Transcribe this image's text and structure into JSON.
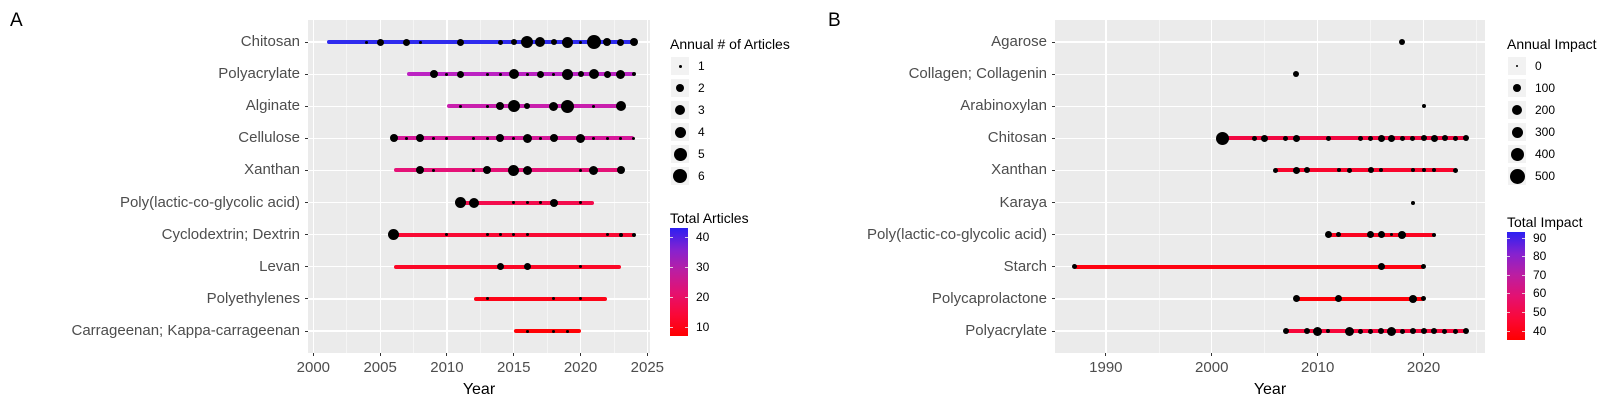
{
  "figure": {
    "background": "#FFFFFF",
    "panel_bg": "#EBEBEB",
    "grid_color": "#FFFFFF",
    "axis_text_color": "#4D4D4D",
    "dot_color": "#000000"
  },
  "chart_data": [
    {
      "type": "line",
      "panel_label": "A",
      "xlabel": "Year",
      "x_range": [
        1999.6,
        2025.2
      ],
      "x_ticks": [
        2000,
        2005,
        2010,
        2015,
        2020,
        2025
      ],
      "x_minor_ticks": [
        2002.5,
        2007.5,
        2012.5,
        2017.5,
        2022.5
      ],
      "size_legend": {
        "title": "Annual # of Articles",
        "entries": [
          {
            "label": "1",
            "d": 3
          },
          {
            "label": "2",
            "d": 8
          },
          {
            "label": "3",
            "d": 10
          },
          {
            "label": "4",
            "d": 11
          },
          {
            "label": "5",
            "d": 13
          },
          {
            "label": "6",
            "d": 14
          }
        ]
      },
      "color_legend": {
        "title": "Total Articles",
        "range": [
          7,
          43
        ],
        "ticks": [
          40,
          30,
          20,
          10
        ],
        "stops": [
          "#2B20F2",
          "#8522D0",
          "#BC1EA1",
          "#E41170",
          "#FA0838",
          "#FF0000"
        ]
      },
      "rows": [
        {
          "label": "Chitosan",
          "line": [
            2001,
            2024
          ],
          "color": "#2F2BEE",
          "dots": [
            [
              2004,
              3
            ],
            [
              2005,
              7
            ],
            [
              2007,
              7
            ],
            [
              2008,
              3
            ],
            [
              2011,
              7
            ],
            [
              2014,
              5
            ],
            [
              2015,
              6
            ],
            [
              2016,
              12
            ],
            [
              2017,
              10
            ],
            [
              2018,
              6
            ],
            [
              2019,
              11
            ],
            [
              2020,
              3
            ],
            [
              2021,
              14
            ],
            [
              2022,
              8
            ],
            [
              2023,
              7
            ],
            [
              2024,
              8
            ]
          ]
        },
        {
          "label": "Polyacrylate",
          "line": [
            2007,
            2024
          ],
          "color": "#BC22C3",
          "dots": [
            [
              2009,
              8
            ],
            [
              2010,
              3
            ],
            [
              2011,
              7
            ],
            [
              2013,
              3
            ],
            [
              2014,
              3
            ],
            [
              2015,
              10
            ],
            [
              2016,
              3
            ],
            [
              2017,
              7
            ],
            [
              2018,
              3
            ],
            [
              2019,
              11
            ],
            [
              2020,
              6
            ],
            [
              2021,
              10
            ],
            [
              2022,
              7
            ],
            [
              2023,
              9
            ],
            [
              2024,
              4
            ]
          ]
        },
        {
          "label": "Alginate",
          "line": [
            2010,
            2023
          ],
          "color": "#C91FAD",
          "dots": [
            [
              2011,
              3
            ],
            [
              2013,
              3
            ],
            [
              2014,
              8
            ],
            [
              2015,
              12
            ],
            [
              2016,
              6
            ],
            [
              2018,
              9
            ],
            [
              2019,
              13
            ],
            [
              2021,
              3
            ],
            [
              2023,
              10
            ]
          ]
        },
        {
          "label": "Cellulose",
          "line": [
            2006,
            2024
          ],
          "color": "#D7199A",
          "dots": [
            [
              2006,
              8
            ],
            [
              2007,
              3
            ],
            [
              2008,
              8
            ],
            [
              2009,
              3
            ],
            [
              2010,
              3
            ],
            [
              2012,
              3
            ],
            [
              2013,
              3
            ],
            [
              2014,
              8
            ],
            [
              2015,
              3
            ],
            [
              2016,
              9
            ],
            [
              2017,
              3
            ],
            [
              2018,
              8
            ],
            [
              2020,
              9
            ],
            [
              2021,
              3
            ],
            [
              2022,
              3
            ],
            [
              2023,
              3
            ],
            [
              2024,
              3
            ]
          ]
        },
        {
          "label": "Xanthan",
          "line": [
            2006,
            2023
          ],
          "color": "#E51277",
          "dots": [
            [
              2008,
              8
            ],
            [
              2009,
              3
            ],
            [
              2012,
              3
            ],
            [
              2013,
              8
            ],
            [
              2015,
              11
            ],
            [
              2016,
              9
            ],
            [
              2020,
              3
            ],
            [
              2021,
              9
            ],
            [
              2023,
              8
            ]
          ]
        },
        {
          "label": "Poly(lactic-co-glycolic acid)",
          "line": [
            2011,
            2021
          ],
          "color": "#F30C4C",
          "dots": [
            [
              2011,
              11
            ],
            [
              2012,
              10
            ],
            [
              2015,
              3
            ],
            [
              2016,
              3
            ],
            [
              2017,
              3
            ],
            [
              2018,
              8
            ],
            [
              2020,
              3
            ]
          ]
        },
        {
          "label": "Cyclodextrin; Dextrin",
          "line": [
            2006,
            2024
          ],
          "color": "#F90934",
          "dots": [
            [
              2006,
              11
            ],
            [
              2010,
              3
            ],
            [
              2013,
              3
            ],
            [
              2014,
              3
            ],
            [
              2015,
              3
            ],
            [
              2016,
              3
            ],
            [
              2022,
              3
            ],
            [
              2023,
              4
            ],
            [
              2024,
              4
            ]
          ]
        },
        {
          "label": "Levan",
          "line": [
            2006,
            2023
          ],
          "color": "#FB0726",
          "dots": [
            [
              2014,
              7
            ],
            [
              2016,
              7
            ],
            [
              2020,
              3
            ]
          ]
        },
        {
          "label": "Polyethylenes",
          "line": [
            2012,
            2022
          ],
          "color": "#FD0417",
          "dots": [
            [
              2013,
              3
            ],
            [
              2018,
              3
            ],
            [
              2020,
              3
            ]
          ]
        },
        {
          "label": "Carrageenan; Kappa-carrageenan",
          "line": [
            2015,
            2020
          ],
          "color": "#FF0105",
          "dots": [
            [
              2016,
              3
            ],
            [
              2018,
              3
            ],
            [
              2019,
              3
            ]
          ]
        }
      ]
    },
    {
      "type": "line",
      "panel_label": "B",
      "xlabel": "Year",
      "x_range": [
        1985.2,
        2025.8
      ],
      "x_ticks": [
        1990,
        2000,
        2010,
        2020
      ],
      "x_minor_ticks": [
        1985,
        1995,
        2005,
        2015,
        2025
      ],
      "size_legend": {
        "title": "Annual Impact",
        "entries": [
          {
            "label": "0",
            "d": 2.5
          },
          {
            "label": "100",
            "d": 8
          },
          {
            "label": "200",
            "d": 10
          },
          {
            "label": "300",
            "d": 11
          },
          {
            "label": "400",
            "d": 13
          },
          {
            "label": "500",
            "d": 15
          }
        ]
      },
      "color_legend": {
        "title": "Total Impact",
        "range": [
          35,
          93
        ],
        "ticks": [
          90,
          80,
          70,
          60,
          50,
          40
        ],
        "stops": [
          "#2B20F2",
          "#8522D0",
          "#BC1EA1",
          "#E41170",
          "#FA0838",
          "#FF0000"
        ]
      },
      "rows": [
        {
          "label": "Agarose",
          "line": null,
          "color": "#FF0000",
          "dots": [
            [
              2018,
              6
            ]
          ]
        },
        {
          "label": "Collagen; Collagenin",
          "line": null,
          "color": "#FF0000",
          "dots": [
            [
              2008,
              6
            ]
          ]
        },
        {
          "label": "Arabinoxylan",
          "line": null,
          "color": "#FF0000",
          "dots": [
            [
              2020,
              4
            ]
          ]
        },
        {
          "label": "Chitosan",
          "line": [
            2001,
            2024
          ],
          "color": "#F20741",
          "dots": [
            [
              2001,
              13
            ],
            [
              2004,
              5
            ],
            [
              2005,
              7
            ],
            [
              2007,
              5
            ],
            [
              2008,
              7
            ],
            [
              2011,
              5
            ],
            [
              2014,
              5
            ],
            [
              2015,
              5
            ],
            [
              2016,
              7
            ],
            [
              2017,
              7
            ],
            [
              2018,
              5
            ],
            [
              2019,
              5
            ],
            [
              2020,
              6
            ],
            [
              2021,
              7
            ],
            [
              2022,
              6
            ],
            [
              2023,
              5
            ],
            [
              2024,
              6
            ]
          ]
        },
        {
          "label": "Xanthan",
          "line": [
            2006,
            2023
          ],
          "color": "#F9052C",
          "dots": [
            [
              2006,
              5
            ],
            [
              2008,
              7
            ],
            [
              2009,
              6
            ],
            [
              2012,
              4
            ],
            [
              2013,
              5
            ],
            [
              2015,
              6
            ],
            [
              2016,
              4
            ],
            [
              2019,
              4
            ],
            [
              2020,
              4
            ],
            [
              2021,
              4
            ],
            [
              2023,
              5
            ]
          ]
        },
        {
          "label": "Karaya",
          "line": null,
          "color": "#FF0000",
          "dots": [
            [
              2019,
              4
            ]
          ]
        },
        {
          "label": "Poly(lactic-co-glycolic acid)",
          "line": [
            2011,
            2021
          ],
          "color": "#FB0421",
          "dots": [
            [
              2011,
              7
            ],
            [
              2012,
              5
            ],
            [
              2015,
              7
            ],
            [
              2016,
              7
            ],
            [
              2017,
              3
            ],
            [
              2018,
              8
            ],
            [
              2021,
              4
            ]
          ]
        },
        {
          "label": "Starch",
          "line": [
            1987,
            2020
          ],
          "color": "#FE0210",
          "dots": [
            [
              1987,
              5
            ],
            [
              2016,
              7
            ],
            [
              2020,
              5
            ]
          ]
        },
        {
          "label": "Polycaprolactone",
          "line": [
            2008,
            2020
          ],
          "color": "#FF0008",
          "dots": [
            [
              2008,
              7
            ],
            [
              2012,
              7
            ],
            [
              2019,
              8
            ],
            [
              2020,
              5
            ]
          ]
        },
        {
          "label": "Polyacrylate",
          "line": [
            2007,
            2024
          ],
          "color": "#F70639",
          "dots": [
            [
              2007,
              6
            ],
            [
              2009,
              6
            ],
            [
              2010,
              9
            ],
            [
              2011,
              4
            ],
            [
              2013,
              9
            ],
            [
              2014,
              5
            ],
            [
              2015,
              5
            ],
            [
              2016,
              6
            ],
            [
              2017,
              9
            ],
            [
              2018,
              5
            ],
            [
              2019,
              6
            ],
            [
              2020,
              6
            ],
            [
              2021,
              6
            ],
            [
              2022,
              5
            ],
            [
              2023,
              5
            ],
            [
              2024,
              6
            ]
          ]
        }
      ]
    }
  ]
}
